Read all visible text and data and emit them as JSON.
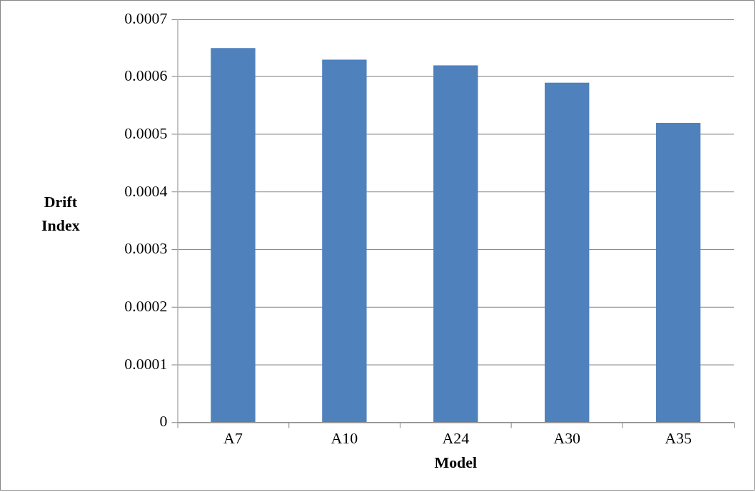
{
  "chart_data": {
    "type": "bar",
    "xlabel": "Model",
    "ylabel": "Drift Index",
    "categories": [
      "A7",
      "A10",
      "A24",
      "A30",
      "A35"
    ],
    "values": [
      0.00065,
      0.00063,
      0.00062,
      0.00059,
      0.00052
    ],
    "color": "#4f81bd",
    "ylim": [
      0,
      0.0007
    ],
    "yticks": [
      0,
      0.0001,
      0.0002,
      0.0003,
      0.0004,
      0.0005,
      0.0006,
      0.0007
    ],
    "grid": "y",
    "legend": false
  }
}
